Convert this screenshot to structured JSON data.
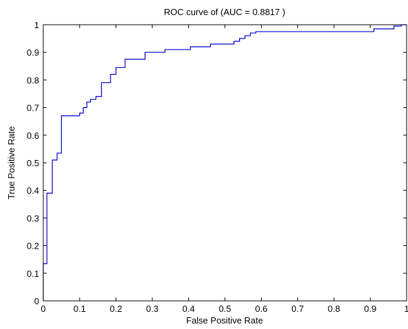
{
  "chart_data": {
    "type": "line",
    "title": "ROC curve of (AUC = 0.8817 )",
    "xlabel": "False Positive Rate",
    "ylabel": "True Positive Rate",
    "xlim": [
      0,
      1
    ],
    "ylim": [
      0,
      1
    ],
    "xticks": [
      "0",
      "0.1",
      "0.2",
      "0.3",
      "0.4",
      "0.5",
      "0.6",
      "0.7",
      "0.8",
      "0.9",
      "1"
    ],
    "yticks": [
      "0",
      "0.1",
      "0.2",
      "0.3",
      "0.4",
      "0.5",
      "0.6",
      "0.7",
      "0.8",
      "0.9",
      "1"
    ],
    "grid": false,
    "step": true,
    "series": [
      {
        "color": "#0000cc",
        "points": [
          [
            0.0,
            0.0
          ],
          [
            0.0,
            0.135
          ],
          [
            0.01,
            0.135
          ],
          [
            0.01,
            0.39
          ],
          [
            0.025,
            0.39
          ],
          [
            0.025,
            0.51
          ],
          [
            0.038,
            0.51
          ],
          [
            0.038,
            0.535
          ],
          [
            0.05,
            0.535
          ],
          [
            0.05,
            0.67
          ],
          [
            0.1,
            0.67
          ],
          [
            0.1,
            0.68
          ],
          [
            0.11,
            0.68
          ],
          [
            0.11,
            0.7
          ],
          [
            0.12,
            0.7
          ],
          [
            0.12,
            0.72
          ],
          [
            0.13,
            0.72
          ],
          [
            0.13,
            0.73
          ],
          [
            0.145,
            0.73
          ],
          [
            0.145,
            0.74
          ],
          [
            0.16,
            0.74
          ],
          [
            0.16,
            0.79
          ],
          [
            0.185,
            0.79
          ],
          [
            0.185,
            0.82
          ],
          [
            0.2,
            0.82
          ],
          [
            0.2,
            0.845
          ],
          [
            0.225,
            0.845
          ],
          [
            0.225,
            0.875
          ],
          [
            0.28,
            0.875
          ],
          [
            0.28,
            0.9
          ],
          [
            0.335,
            0.9
          ],
          [
            0.335,
            0.91
          ],
          [
            0.405,
            0.91
          ],
          [
            0.405,
            0.92
          ],
          [
            0.46,
            0.92
          ],
          [
            0.46,
            0.93
          ],
          [
            0.525,
            0.93
          ],
          [
            0.525,
            0.94
          ],
          [
            0.54,
            0.94
          ],
          [
            0.54,
            0.95
          ],
          [
            0.555,
            0.95
          ],
          [
            0.555,
            0.96
          ],
          [
            0.57,
            0.96
          ],
          [
            0.57,
            0.97
          ],
          [
            0.585,
            0.97
          ],
          [
            0.585,
            0.975
          ],
          [
            0.91,
            0.975
          ],
          [
            0.91,
            0.985
          ],
          [
            0.965,
            0.985
          ],
          [
            0.965,
            0.995
          ],
          [
            0.985,
            0.995
          ],
          [
            0.985,
            1.0
          ],
          [
            1.0,
            1.0
          ]
        ]
      }
    ]
  }
}
